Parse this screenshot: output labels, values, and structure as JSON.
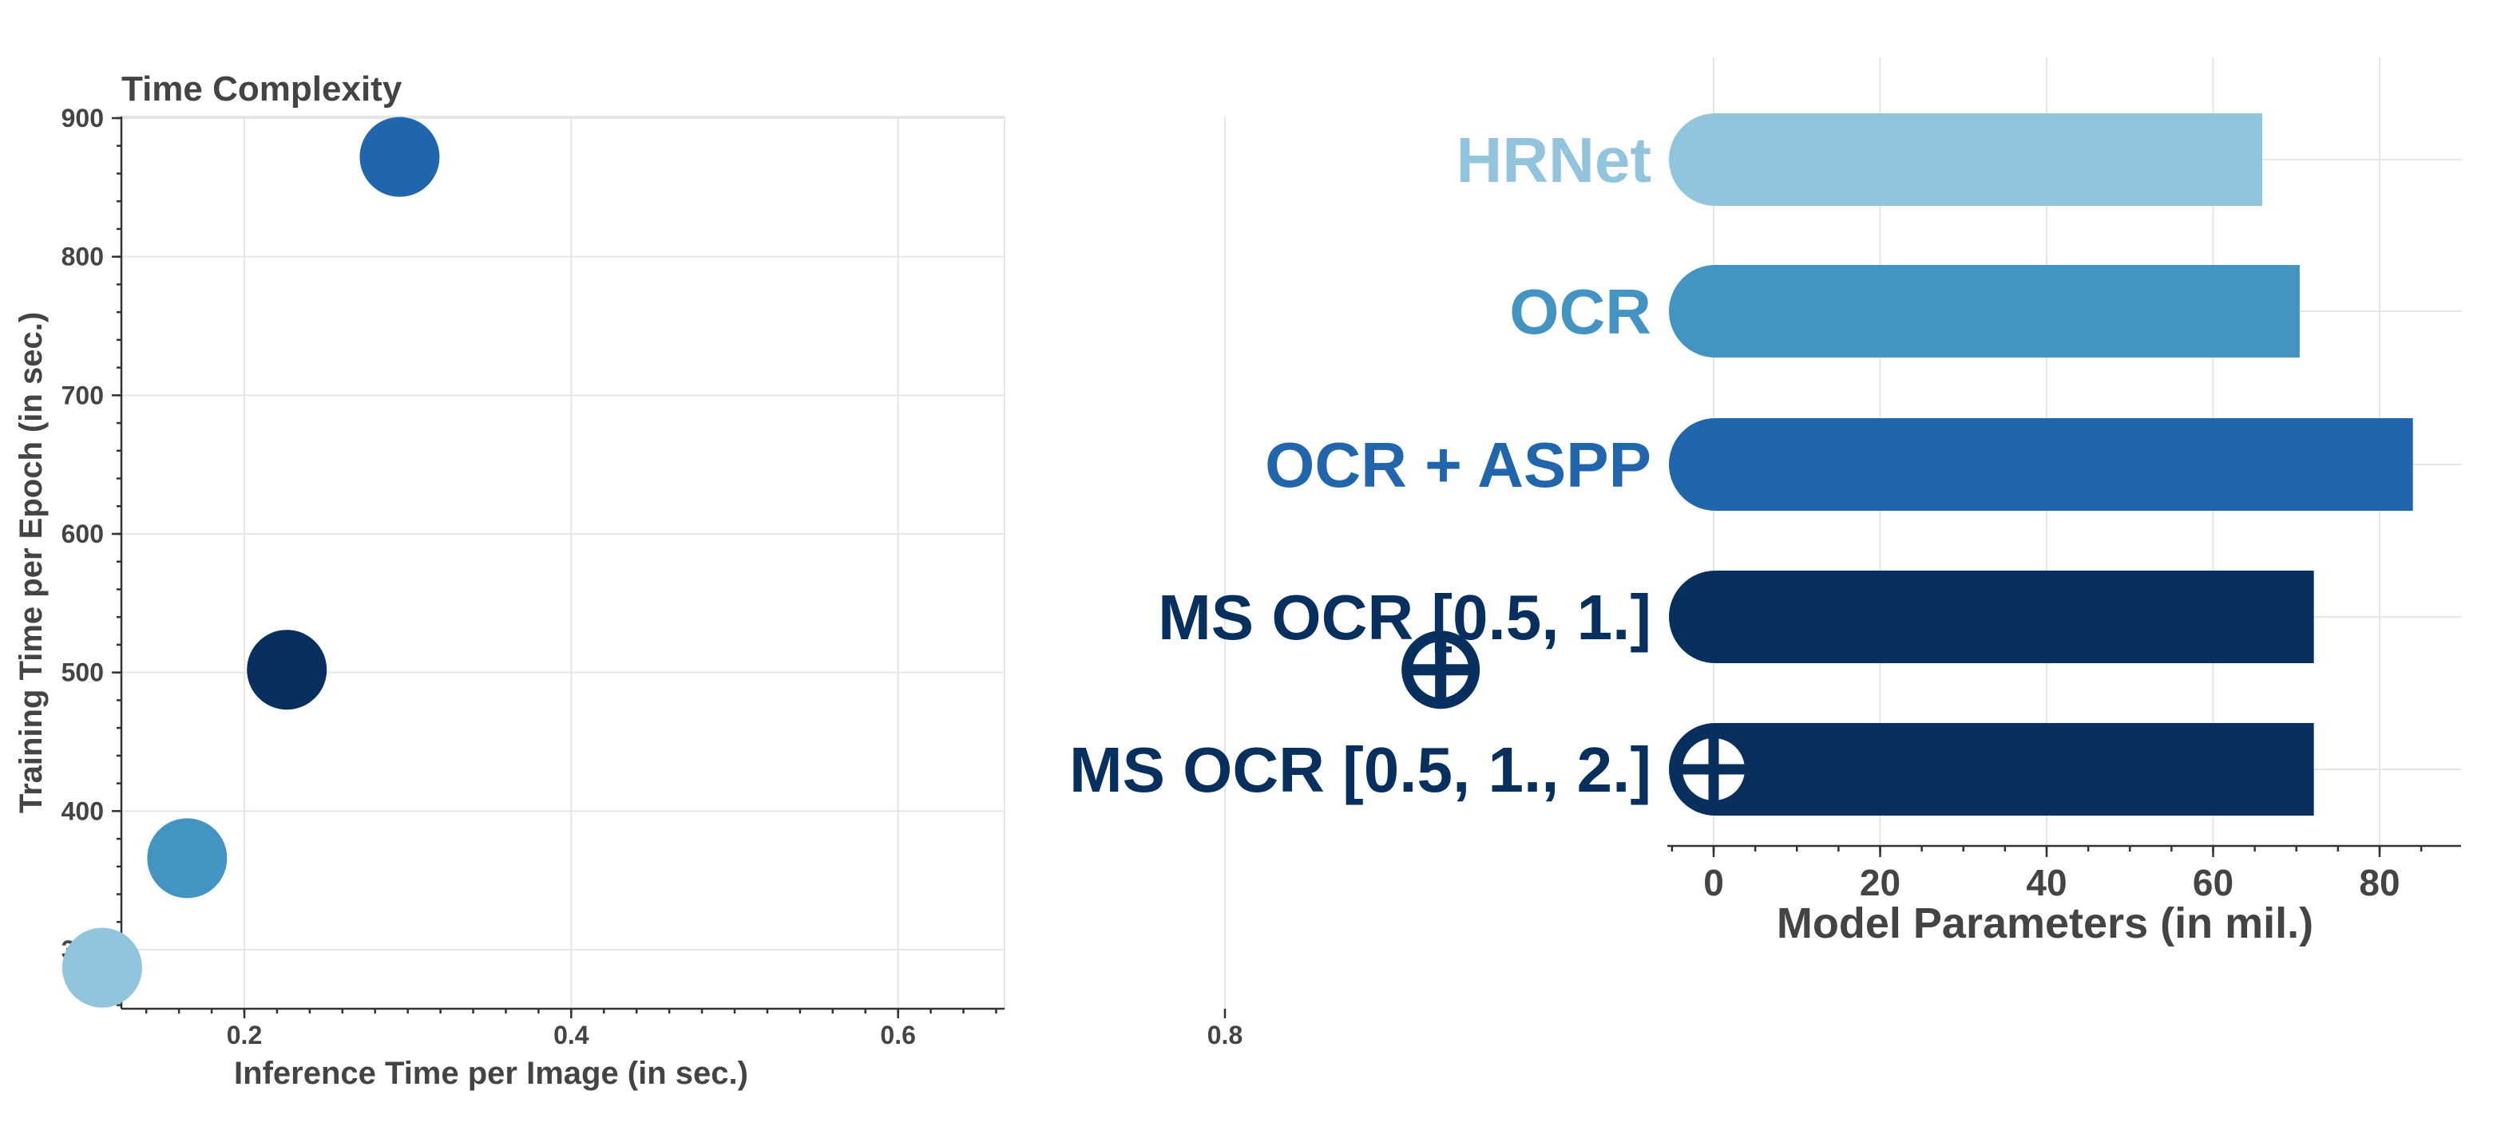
{
  "colors": {
    "light_blue": "#92c4de",
    "mid_blue": "#4393c3",
    "blue": "#2166ac",
    "dark_navy": "#08305f",
    "text_gray": "#444444"
  },
  "marker_icon": "circle-plus-icon",
  "chart_data": [
    {
      "type": "scatter",
      "title": "Time Complexity",
      "xlabel": "Inference Time per Image (in sec.)",
      "ylabel": "Training Time per Epoch (in sec.)",
      "xlim": [
        0.08,
        0.97
      ],
      "ylim": [
        260,
        900
      ],
      "xticks": [
        "0.2",
        "0.4",
        "0.6",
        "0.8"
      ],
      "yticks": [
        "300",
        "400",
        "500",
        "600",
        "700",
        "800",
        "900"
      ],
      "grid": true,
      "points": [
        {
          "model": "HRNet",
          "x": 0.113,
          "y": 287,
          "color": "#92c4de",
          "marker": "circle"
        },
        {
          "model": "OCR",
          "x": 0.165,
          "y": 366,
          "color": "#4393c3",
          "marker": "circle"
        },
        {
          "model": "OCR + ASPP",
          "x": 0.295,
          "y": 872,
          "color": "#2166ac",
          "marker": "circle"
        },
        {
          "model": "MS OCR [0.5, 1.]",
          "x": 0.226,
          "y": 502,
          "color": "#08305f",
          "marker": "circle"
        },
        {
          "model": "MS OCR [0.5, 1., 2.]",
          "x": 0.932,
          "y": 502,
          "color": "#08305f",
          "marker": "circle-plus"
        }
      ]
    },
    {
      "type": "bar",
      "orientation": "horizontal",
      "xlabel": "Model Parameters (in mil.)",
      "xlim": [
        -7,
        90
      ],
      "xticks": [
        "0",
        "20",
        "40",
        "60",
        "80"
      ],
      "grid": true,
      "categories": [
        "HRNet",
        "OCR",
        "OCR + ASPP",
        "MS OCR [0.5, 1.]",
        "MS OCR [0.5, 1., 2.]"
      ],
      "values": [
        65.9,
        70.4,
        84.0,
        72.1,
        72.1
      ],
      "colors": [
        "#92c4de",
        "#4393c3",
        "#2166ac",
        "#08305f",
        "#08305f"
      ],
      "markers": [
        "",
        "",
        "",
        "",
        "circle-plus"
      ]
    }
  ]
}
